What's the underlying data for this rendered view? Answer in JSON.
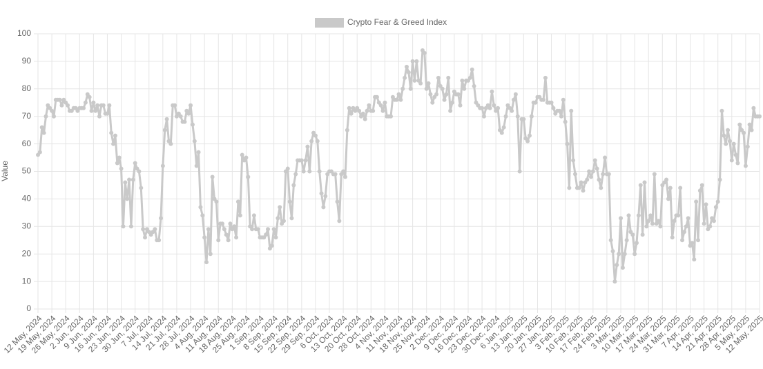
{
  "chart_data": {
    "type": "line",
    "legend_position": "top",
    "y_label": "Value",
    "grid": true,
    "ylim": [
      0,
      100
    ],
    "yticks": [
      0,
      10,
      20,
      30,
      40,
      50,
      60,
      70,
      80,
      90,
      100
    ],
    "categories": [
      "12 May, 2024",
      null,
      null,
      null,
      null,
      null,
      null,
      "19 May, 2024",
      null,
      null,
      null,
      null,
      null,
      null,
      "26 May, 2024",
      null,
      null,
      null,
      null,
      null,
      null,
      "2 Jun, 2024",
      null,
      null,
      null,
      null,
      null,
      null,
      "9 Jun, 2024",
      null,
      null,
      null,
      null,
      null,
      null,
      "16 Jun, 2024",
      null,
      null,
      null,
      null,
      null,
      null,
      "23 Jun, 2024",
      null,
      null,
      null,
      null,
      null,
      null,
      "30 Jun, 2024",
      null,
      null,
      null,
      null,
      null,
      null,
      "7 Jul, 2024",
      null,
      null,
      null,
      null,
      null,
      null,
      "14 Jul, 2024",
      null,
      null,
      null,
      null,
      null,
      null,
      "21 Jul, 2024",
      null,
      null,
      null,
      null,
      null,
      null,
      "28 Jul, 2024",
      null,
      null,
      null,
      null,
      null,
      null,
      "4 Aug, 2024",
      null,
      null,
      null,
      null,
      null,
      null,
      "11 Aug, 2024",
      null,
      null,
      null,
      null,
      null,
      null,
      "18 Aug, 2024",
      null,
      null,
      null,
      null,
      null,
      null,
      "25 Aug, 2024",
      null,
      null,
      null,
      null,
      null,
      null,
      "1 Sep, 2024",
      null,
      null,
      null,
      null,
      null,
      null,
      "8 Sep, 2024",
      null,
      null,
      null,
      null,
      null,
      null,
      "15 Sep, 2024",
      null,
      null,
      null,
      null,
      null,
      null,
      "22 Sep, 2024",
      null,
      null,
      null,
      null,
      null,
      null,
      "29 Sep, 2024",
      null,
      null,
      null,
      null,
      null,
      null,
      "6 Oct, 2024",
      null,
      null,
      null,
      null,
      null,
      null,
      "13 Oct, 2024",
      null,
      null,
      null,
      null,
      null,
      null,
      "20 Oct, 2024",
      null,
      null,
      null,
      null,
      null,
      null,
      "28 Oct, 2024",
      null,
      null,
      null,
      null,
      null,
      null,
      "4 Nov, 2024",
      null,
      null,
      null,
      null,
      null,
      null,
      "11 Nov, 2024",
      null,
      null,
      null,
      null,
      null,
      null,
      "18 Nov, 2024",
      null,
      null,
      null,
      null,
      null,
      null,
      "25 Nov, 2024",
      null,
      null,
      null,
      null,
      null,
      null,
      "2 Dec, 2024",
      null,
      null,
      null,
      null,
      null,
      null,
      "9 Dec, 2024",
      null,
      null,
      null,
      null,
      null,
      null,
      "16 Dec, 2024",
      null,
      null,
      null,
      null,
      null,
      null,
      "23 Dec, 2024",
      null,
      null,
      null,
      null,
      null,
      null,
      "30 Dec, 2024",
      null,
      null,
      null,
      null,
      null,
      null,
      "6 Jan, 2025",
      null,
      null,
      null,
      null,
      null,
      null,
      "13 Jan, 2025",
      null,
      null,
      null,
      null,
      null,
      null,
      "20 Jan, 2025",
      null,
      null,
      null,
      null,
      null,
      null,
      "27 Jan, 2025",
      null,
      null,
      null,
      null,
      null,
      null,
      "3 Feb, 2025",
      null,
      null,
      null,
      null,
      null,
      null,
      "10 Feb, 2025",
      null,
      null,
      null,
      null,
      null,
      null,
      "17 Feb, 2025",
      null,
      null,
      null,
      null,
      null,
      null,
      "24 Feb, 2025",
      null,
      null,
      null,
      null,
      null,
      null,
      "3 Mar, 2025",
      null,
      null,
      null,
      null,
      null,
      null,
      "10 Mar, 2025",
      null,
      null,
      null,
      null,
      null,
      null,
      "17 Mar, 2025",
      null,
      null,
      null,
      null,
      null,
      null,
      "24 Mar, 2025",
      null,
      null,
      null,
      null,
      null,
      null,
      "31 Mar, 2025",
      null,
      null,
      null,
      null,
      null,
      null,
      "7 Apr, 2025",
      null,
      null,
      null,
      null,
      null,
      null,
      "14 Apr, 2025",
      null,
      null,
      null,
      null,
      null,
      null,
      "21 Apr, 2025",
      null,
      null,
      null,
      null,
      null,
      null,
      "28 Apr, 2025",
      null,
      null,
      null,
      null,
      null,
      null,
      "5 May, 2025",
      null,
      null,
      null,
      null,
      null,
      null,
      "12 May, 2025"
    ],
    "series": [
      {
        "name": "Crypto Fear & Greed Index",
        "color": "#c9c9c9",
        "values": [
          56,
          57,
          66,
          64,
          70,
          74,
          73,
          72,
          70,
          76,
          76,
          76,
          74,
          76,
          75,
          74,
          72,
          72,
          73,
          73,
          72,
          73,
          73,
          73,
          75,
          78,
          77,
          72,
          75,
          72,
          74,
          70,
          74,
          74,
          71,
          71,
          74,
          64,
          60,
          63,
          53,
          55,
          51,
          30,
          46,
          40,
          47,
          30,
          47,
          53,
          51,
          50,
          44,
          29,
          26,
          29,
          28,
          27,
          28,
          29,
          25,
          25,
          33,
          52,
          65,
          69,
          61,
          60,
          74,
          74,
          70,
          71,
          70,
          68,
          68,
          72,
          71,
          74,
          67,
          61,
          52,
          57,
          37,
          34,
          26,
          17,
          29,
          20,
          48,
          40,
          39,
          25,
          31,
          31,
          29,
          27,
          25,
          31,
          29,
          30,
          26,
          39,
          34,
          56,
          54,
          55,
          48,
          30,
          29,
          34,
          29,
          29,
          26,
          26,
          26,
          27,
          29,
          22,
          23,
          29,
          26,
          33,
          37,
          31,
          32,
          50,
          51,
          39,
          33,
          45,
          49,
          54,
          54,
          54,
          50,
          54,
          59,
          50,
          61,
          64,
          63,
          61,
          50,
          42,
          37,
          41,
          49,
          50,
          50,
          49,
          49,
          39,
          32,
          49,
          50,
          48,
          65,
          73,
          71,
          73,
          72,
          73,
          72,
          70,
          71,
          69,
          72,
          74,
          72,
          72,
          77,
          77,
          75,
          74,
          72,
          75,
          70,
          70,
          70,
          77,
          76,
          76,
          78,
          76,
          80,
          84,
          88,
          86,
          80,
          90,
          83,
          90,
          83,
          82,
          94,
          93,
          80,
          82,
          78,
          75,
          77,
          78,
          84,
          81,
          80,
          76,
          78,
          84,
          72,
          75,
          79,
          78,
          78,
          74,
          83,
          80,
          83,
          83,
          84,
          87,
          81,
          75,
          74,
          73,
          73,
          70,
          73,
          74,
          73,
          79,
          74,
          72,
          73,
          65,
          64,
          66,
          70,
          74,
          73,
          72,
          76,
          78,
          70,
          50,
          69,
          69,
          62,
          61,
          63,
          70,
          75,
          75,
          77,
          77,
          76,
          76,
          84,
          75,
          75,
          75,
          73,
          71,
          72,
          72,
          70,
          76,
          68,
          60,
          44,
          72,
          54,
          49,
          44,
          44,
          46,
          43,
          46,
          47,
          50,
          48,
          50,
          54,
          51,
          47,
          44,
          49,
          55,
          49,
          49,
          25,
          21,
          10,
          16,
          20,
          33,
          15,
          20,
          25,
          34,
          28,
          27,
          20,
          24,
          34,
          45,
          27,
          46,
          30,
          32,
          34,
          31,
          49,
          31,
          32,
          30,
          45,
          46,
          47,
          40,
          44,
          26,
          32,
          34,
          34,
          44,
          25,
          28,
          30,
          33,
          23,
          24,
          18,
          39,
          25,
          43,
          45,
          31,
          38,
          29,
          30,
          33,
          32,
          37,
          39,
          47,
          72,
          63,
          60,
          65,
          61,
          54,
          60,
          56,
          53,
          67,
          65,
          64,
          52,
          59,
          67,
          65,
          73,
          70,
          70,
          70
        ]
      }
    ]
  }
}
